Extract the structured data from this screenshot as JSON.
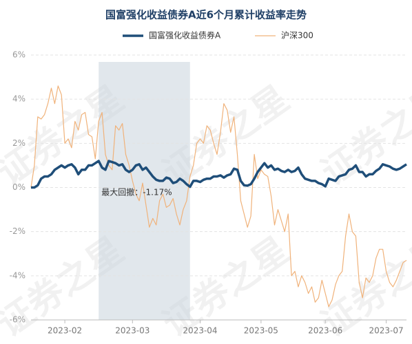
{
  "chart_data": {
    "type": "line",
    "title": "国富强化收益债券A近6个月累计收益率走势",
    "annotation": "最大回撤：-1.17%",
    "watermark": "证券之星",
    "categories": [
      null,
      null,
      null,
      null,
      null,
      null,
      null,
      null,
      null,
      null,
      "2023-02",
      null,
      null,
      null,
      null,
      null,
      null,
      null,
      null,
      null,
      null,
      null,
      null,
      null,
      null,
      null,
      null,
      null,
      null,
      null,
      "2023-03",
      null,
      null,
      null,
      null,
      null,
      null,
      null,
      null,
      null,
      null,
      null,
      null,
      null,
      null,
      null,
      null,
      null,
      null,
      null,
      "2023-04",
      null,
      null,
      null,
      null,
      null,
      null,
      null,
      null,
      null,
      null,
      null,
      null,
      null,
      null,
      null,
      null,
      null,
      "2023-05",
      null,
      null,
      null,
      null,
      null,
      null,
      null,
      null,
      null,
      null,
      null,
      null,
      null,
      null,
      null,
      null,
      null,
      null,
      "2023-06",
      null,
      null,
      null,
      null,
      null,
      null,
      null,
      null,
      null,
      null,
      null,
      null,
      null,
      null,
      null,
      null,
      null,
      "2023-07",
      null,
      null,
      null,
      null,
      null,
      null
    ],
    "series": [
      {
        "name": "国富强化收益债券A",
        "color": "#1f4e79",
        "width": 3.5,
        "values": [
          0,
          0,
          0.1,
          0.4,
          0.5,
          0.5,
          0.6,
          0.8,
          0.9,
          1.0,
          0.9,
          1.0,
          1.05,
          0.9,
          0.6,
          0.8,
          0.8,
          1.0,
          1.0,
          1.1,
          1.2,
          0.9,
          0.8,
          1.2,
          1.15,
          1.1,
          1.0,
          1.05,
          0.8,
          0.7,
          0.8,
          1.0,
          1.05,
          0.8,
          0.9,
          0.7,
          0.5,
          0.35,
          0.3,
          0.3,
          0.45,
          0.4,
          0.2,
          0.25,
          0.4,
          0.3,
          0.15,
          0.03,
          0.3,
          0.3,
          0.25,
          0.35,
          0.4,
          0.4,
          0.5,
          0.5,
          0.55,
          0.45,
          0.55,
          0.6,
          0.85,
          0.8,
          0.3,
          0.1,
          0.08,
          0.15,
          0.4,
          0.7,
          0.9,
          1.1,
          0.9,
          1.0,
          0.8,
          0.85,
          0.75,
          0.7,
          0.8,
          0.7,
          0.75,
          0.9,
          0.6,
          0.4,
          0.35,
          0.3,
          0.3,
          0.2,
          0.15,
          0.05,
          0.4,
          0.35,
          0.3,
          0.5,
          0.55,
          0.6,
          0.8,
          0.85,
          1.0,
          0.7,
          0.7,
          0.5,
          0.6,
          0.6,
          0.75,
          0.85,
          1.05,
          1.0,
          0.95,
          0.85,
          0.8,
          0.85,
          0.95,
          1.05
        ]
      },
      {
        "name": "沪深300",
        "color": "#f0b27a",
        "width": 1.2,
        "values": [
          0,
          1.0,
          3.2,
          3.1,
          3.3,
          3.8,
          4.5,
          3.8,
          4.6,
          4.2,
          2.0,
          2.2,
          1.8,
          3.0,
          2.6,
          3.3,
          3.4,
          2.4,
          2.3,
          1.3,
          3.0,
          3.4,
          1.5,
          1.0,
          0.8,
          2.8,
          2.6,
          2.9,
          1.5,
          1.0,
          0.3,
          -0.3,
          -0.6,
          0.2,
          -0.8,
          -1.8,
          -1.4,
          -1.7,
          -0.6,
          -0.3,
          -0.9,
          -0.8,
          -0.5,
          -1.2,
          -1.7,
          -1.0,
          -0.6,
          0.5,
          1.0,
          2.0,
          2.2,
          2.0,
          2.8,
          2.6,
          2.0,
          1.5,
          2.5,
          3.8,
          3.5,
          2.5,
          3.2,
          1.5,
          -0.6,
          -1.2,
          -1.8,
          -1.3,
          1.5,
          0.4,
          0.8,
          0.6,
          0.5,
          -0.4,
          -1.7,
          -1.0,
          -1.5,
          -2.0,
          -1.2,
          -4.0,
          -3.8,
          -4.5,
          -4.0,
          -4.3,
          -4.8,
          -4.5,
          -5.2,
          -5.0,
          -4.2,
          -4.8,
          -5.4,
          -5.1,
          -4.4,
          -4.0,
          -3.8,
          -2.2,
          -1.2,
          -2.0,
          -2.2,
          -4.3,
          -5.0,
          -4.1,
          -4.3,
          -4.0,
          -3.2,
          -2.8,
          -2.8,
          -3.8,
          -4.3,
          -4.5,
          -4.2,
          -3.8,
          -3.4,
          -3.3
        ]
      }
    ],
    "ylim": [
      -6,
      6
    ],
    "yticks": [
      {
        "value": -6,
        "label": "-6%"
      },
      {
        "value": -4,
        "label": "-4%"
      },
      {
        "value": -2,
        "label": "-2%"
      },
      {
        "value": 0,
        "label": "0%"
      },
      {
        "value": 2,
        "label": "2%"
      },
      {
        "value": 4,
        "label": "4%"
      },
      {
        "value": 6,
        "label": "6%"
      }
    ],
    "grid": true
  }
}
